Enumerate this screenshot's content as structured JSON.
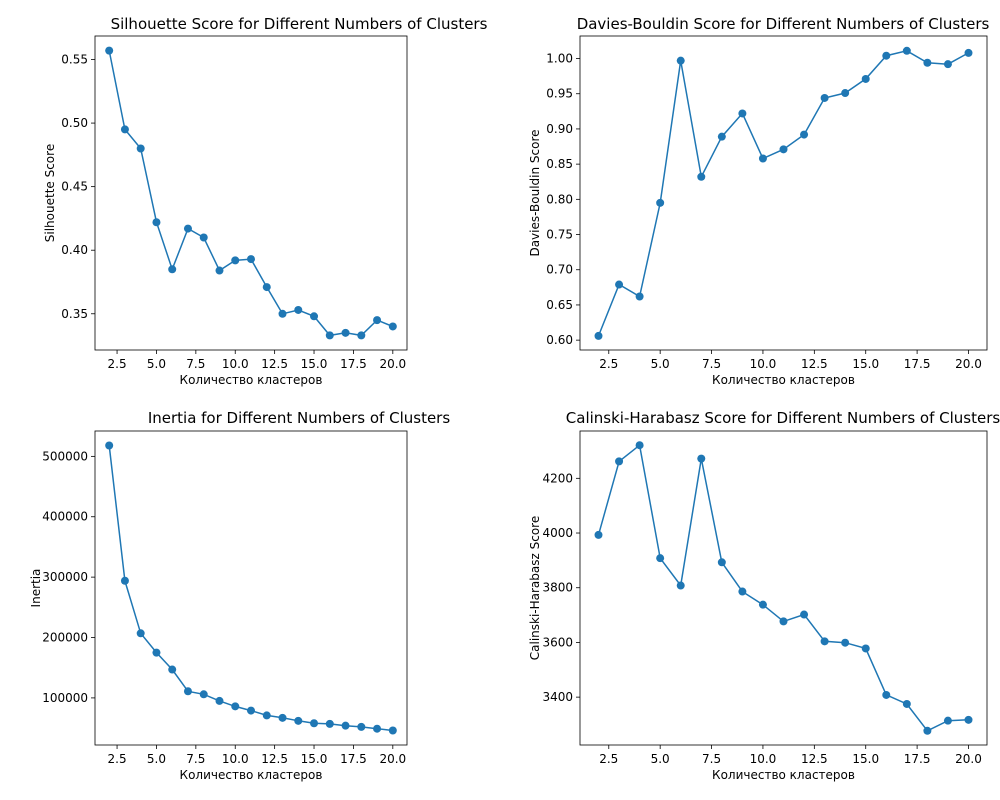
{
  "chart_data": [
    {
      "type": "line",
      "title": "Silhouette Score for Different Numbers of Clusters",
      "xlabel": "Количество кластеров",
      "ylabel": "Silhouette Score",
      "x": [
        2,
        3,
        4,
        5,
        6,
        7,
        8,
        9,
        10,
        11,
        12,
        13,
        14,
        15,
        16,
        17,
        18,
        19,
        20
      ],
      "series": [
        {
          "values": [
            0.557,
            0.495,
            0.48,
            0.422,
            0.385,
            0.417,
            0.41,
            0.384,
            0.392,
            0.393,
            0.371,
            0.35,
            0.353,
            0.348,
            0.333,
            0.335,
            0.333,
            0.345,
            0.34
          ]
        }
      ],
      "xlim": [
        1.1,
        20.9
      ],
      "ylim": [
        0.3215,
        0.5685
      ],
      "xticks": [
        2.5,
        5.0,
        7.5,
        10.0,
        12.5,
        15.0,
        17.5,
        20.0
      ],
      "xtick_labels": [
        "2.5",
        "5.0",
        "7.5",
        "10.0",
        "12.5",
        "15.0",
        "17.5",
        "20.0"
      ],
      "yticks": [
        0.35,
        0.4,
        0.45,
        0.5,
        0.55
      ],
      "ytick_labels": [
        "0.35",
        "0.40",
        "0.45",
        "0.50",
        "0.55"
      ],
      "grid": false,
      "color": "#1f77b4"
    },
    {
      "type": "line",
      "title": "Davies-Bouldin Score for Different Numbers of Clusters",
      "xlabel": "Количество кластеров",
      "ylabel": "Davies-Bouldin Score",
      "x": [
        2,
        3,
        4,
        5,
        6,
        7,
        8,
        9,
        10,
        11,
        12,
        13,
        14,
        15,
        16,
        17,
        18,
        19,
        20
      ],
      "series": [
        {
          "values": [
            0.606,
            0.679,
            0.662,
            0.795,
            0.997,
            0.832,
            0.889,
            0.922,
            0.858,
            0.871,
            0.892,
            0.944,
            0.951,
            0.971,
            1.004,
            1.011,
            0.994,
            0.992,
            1.008
          ]
        }
      ],
      "xlim": [
        1.1,
        20.9
      ],
      "ylim": [
        0.586,
        1.032
      ],
      "xticks": [
        2.5,
        5.0,
        7.5,
        10.0,
        12.5,
        15.0,
        17.5,
        20.0
      ],
      "xtick_labels": [
        "2.5",
        "5.0",
        "7.5",
        "10.0",
        "12.5",
        "15.0",
        "17.5",
        "20.0"
      ],
      "yticks": [
        0.6,
        0.65,
        0.7,
        0.75,
        0.8,
        0.85,
        0.9,
        0.95,
        1.0
      ],
      "ytick_labels": [
        "0.60",
        "0.65",
        "0.70",
        "0.75",
        "0.80",
        "0.85",
        "0.90",
        "0.95",
        "1.00"
      ],
      "grid": false,
      "color": "#1f77b4"
    },
    {
      "type": "line",
      "title": "Inertia for Different Numbers of Clusters",
      "xlabel": "Количество кластеров",
      "ylabel": "Inertia",
      "x": [
        2,
        3,
        4,
        5,
        6,
        7,
        8,
        9,
        10,
        11,
        12,
        13,
        14,
        15,
        16,
        17,
        18,
        19,
        20
      ],
      "series": [
        {
          "values": [
            518000,
            294000,
            207000,
            175000,
            147000,
            111000,
            106000,
            95000,
            86000,
            79000,
            71000,
            67000,
            62000,
            58000,
            57000,
            54000,
            52000,
            49000,
            46000
          ]
        }
      ],
      "xlim": [
        1.1,
        20.9
      ],
      "ylim": [
        22000,
        542000
      ],
      "xticks": [
        2.5,
        5.0,
        7.5,
        10.0,
        12.5,
        15.0,
        17.5,
        20.0
      ],
      "xtick_labels": [
        "2.5",
        "5.0",
        "7.5",
        "10.0",
        "12.5",
        "15.0",
        "17.5",
        "20.0"
      ],
      "yticks": [
        100000,
        200000,
        300000,
        400000,
        500000
      ],
      "ytick_labels": [
        "100000",
        "200000",
        "300000",
        "400000",
        "500000"
      ],
      "grid": false,
      "color": "#1f77b4"
    },
    {
      "type": "line",
      "title": "Calinski-Harabasz Score for Different Numbers of Clusters",
      "xlabel": "Количество кластеров",
      "ylabel": "Calinski-Harabasz Score",
      "x": [
        2,
        3,
        4,
        5,
        6,
        7,
        8,
        9,
        10,
        11,
        12,
        13,
        14,
        15,
        16,
        17,
        18,
        19,
        20
      ],
      "series": [
        {
          "values": [
            3993,
            4262,
            4321,
            3908,
            3808,
            4272,
            3893,
            3786,
            3738,
            3677,
            3702,
            3604,
            3599,
            3578,
            3408,
            3375,
            3277,
            3314,
            3317
          ]
        }
      ],
      "xlim": [
        1.1,
        20.9
      ],
      "ylim": [
        3225,
        4373
      ],
      "xticks": [
        2.5,
        5.0,
        7.5,
        10.0,
        12.5,
        15.0,
        17.5,
        20.0
      ],
      "xtick_labels": [
        "2.5",
        "5.0",
        "7.5",
        "10.0",
        "12.5",
        "15.0",
        "17.5",
        "20.0"
      ],
      "yticks": [
        3400,
        3600,
        3800,
        4000,
        4200
      ],
      "ytick_labels": [
        "3400",
        "3600",
        "3800",
        "4000",
        "4200"
      ],
      "grid": false,
      "color": "#1f77b4"
    }
  ]
}
